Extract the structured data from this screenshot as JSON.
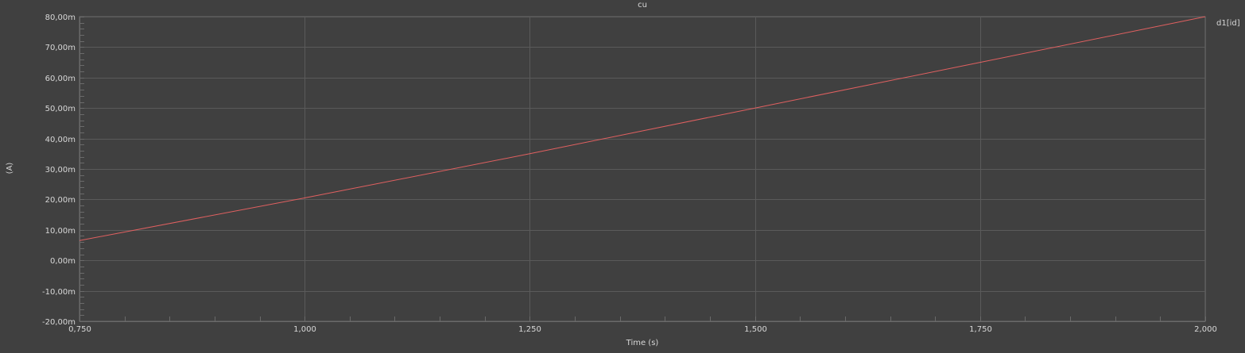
{
  "chart_data": {
    "type": "line",
    "title": "cu",
    "xlabel": "Time (s)",
    "ylabel": "(A)",
    "xlim": [
      0.75,
      2.0
    ],
    "ylim": [
      -0.02,
      0.08
    ],
    "x_ticks": [
      0.75,
      1.0,
      1.25,
      1.5,
      1.75,
      2.0
    ],
    "x_tick_labels": [
      "0,750",
      "1,000",
      "1,250",
      "1,500",
      "1,750",
      "2,000"
    ],
    "y_ticks": [
      -0.02,
      -0.01,
      0.0,
      0.01,
      0.02,
      0.03,
      0.04,
      0.05,
      0.06,
      0.07,
      0.08
    ],
    "y_tick_labels": [
      "-20,00m",
      "-10,00m",
      "0,00m",
      "10,00m",
      "20,00m",
      "30,00m",
      "40,00m",
      "50,00m",
      "60,00m",
      "70,00m",
      "80,00m"
    ],
    "grid": true,
    "legend_placement": "top-right",
    "series": [
      {
        "name": "d1[id]",
        "color": "#e06060",
        "x": [
          0.75,
          1.0,
          1.25,
          1.5,
          1.75,
          2.0
        ],
        "y": [
          0.0065,
          0.0205,
          0.035,
          0.05,
          0.065,
          0.08
        ]
      }
    ]
  },
  "colors": {
    "background": "#404040",
    "grid": "#5a5a5a",
    "axis": "#6a6a6a",
    "text": "#d8d8d8",
    "series": "#e06060"
  }
}
